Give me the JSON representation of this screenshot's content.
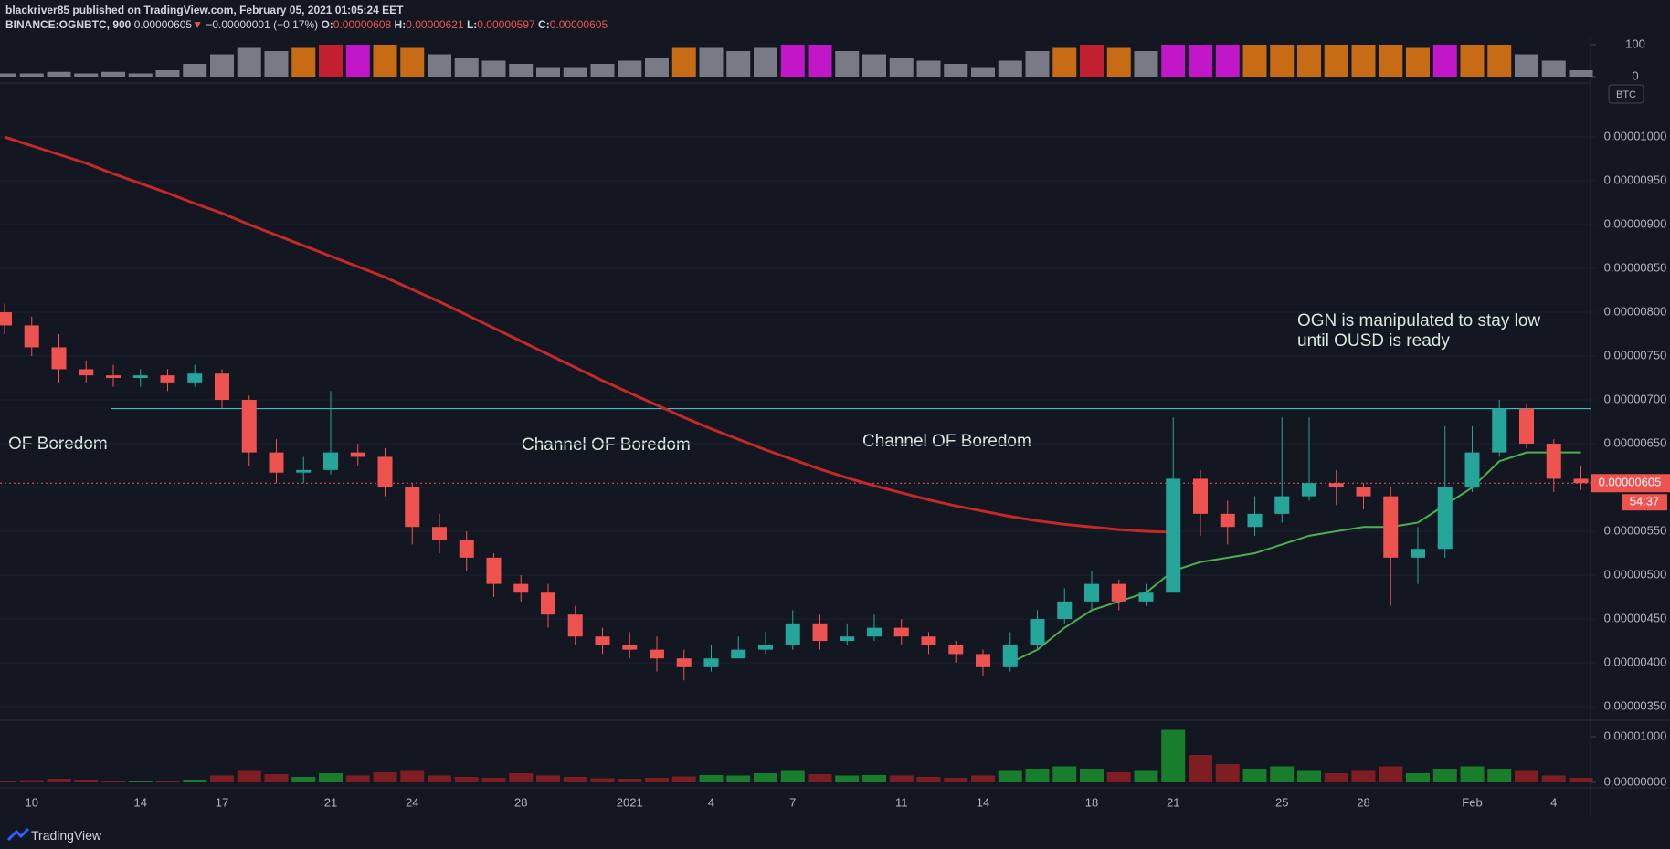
{
  "header": {
    "line1": "blackriver85 published on TradingView.com, February 05, 2021 01:05:24 EET",
    "symbol": "BINANCE:OGNBTC, 900",
    "last": "0.00000605",
    "arrow": "▼",
    "change": "−0.00000001 (−0.17%)",
    "o_label": "O:",
    "o": "0.00000608",
    "h_label": "H:",
    "h": "0.00000621",
    "l_label": "L:",
    "l": "0.00000597",
    "c_label": "C:",
    "c": "0.00000605"
  },
  "chart_data": [
    {
      "type": "bar",
      "ylim": [
        0,
        100
      ],
      "yticks": [
        100,
        0
      ],
      "values": [
        10,
        10,
        15,
        10,
        15,
        10,
        20,
        40,
        70,
        90,
        80,
        90,
        100,
        100,
        100,
        90,
        70,
        60,
        50,
        40,
        30,
        30,
        40,
        50,
        60,
        90,
        90,
        80,
        90,
        100,
        100,
        80,
        70,
        60,
        50,
        40,
        30,
        50,
        80,
        90,
        100,
        90,
        80,
        100,
        100,
        100,
        100,
        100,
        100,
        100,
        100,
        100,
        90,
        100,
        100,
        100,
        70,
        50,
        20
      ],
      "colors": [
        "#787b86",
        "#787b86",
        "#787b86",
        "#787b86",
        "#787b86",
        "#787b86",
        "#787b86",
        "#787b86",
        "#787b86",
        "#787b86",
        "#787b86",
        "#c76b14",
        "#c21f30",
        "#c217c9",
        "#c76b14",
        "#c76b14",
        "#787b86",
        "#787b86",
        "#787b86",
        "#787b86",
        "#787b86",
        "#787b86",
        "#787b86",
        "#787b86",
        "#787b86",
        "#c76b14",
        "#787b86",
        "#787b86",
        "#787b86",
        "#c217c9",
        "#c217c9",
        "#787b86",
        "#787b86",
        "#787b86",
        "#787b86",
        "#787b86",
        "#787b86",
        "#787b86",
        "#787b86",
        "#c76b14",
        "#c21f30",
        "#c76b14",
        "#787b86",
        "#c217c9",
        "#c217c9",
        "#c217c9",
        "#c76b14",
        "#c76b14",
        "#c76b14",
        "#c76b14",
        "#c76b14",
        "#c76b14",
        "#c76b14",
        "#c217c9",
        "#c76b14",
        "#c76b14",
        "#787b86",
        "#787b86",
        "#787b86"
      ]
    },
    {
      "type": "candlestick",
      "currency": "BTC",
      "up_color": "#26a69a",
      "down_color": "#ef5350",
      "categories": [
        null,
        "10",
        null,
        null,
        null,
        "14",
        null,
        null,
        "17",
        null,
        null,
        null,
        "21",
        null,
        null,
        "24",
        null,
        null,
        null,
        "28",
        null,
        null,
        null,
        "2021",
        null,
        null,
        "4",
        null,
        null,
        "7",
        null,
        null,
        null,
        "11",
        null,
        null,
        "14",
        null,
        null,
        null,
        "18",
        null,
        null,
        "21",
        null,
        null,
        null,
        "25",
        null,
        null,
        "28",
        null,
        null,
        null,
        "Feb",
        null,
        null,
        "4",
        null
      ],
      "open": [
        8e-06,
        7.85e-06,
        7.6e-06,
        7.35e-06,
        7.28e-06,
        7.25e-06,
        7.28e-06,
        7.2e-06,
        7.3e-06,
        7e-06,
        6.4e-06,
        6.17e-06,
        6.2e-06,
        6.4e-06,
        6.35e-06,
        6e-06,
        5.55e-06,
        5.4e-06,
        5.2e-06,
        4.9e-06,
        4.8e-06,
        4.55e-06,
        4.3e-06,
        4.2e-06,
        4.15e-06,
        4.05e-06,
        3.95e-06,
        4.05e-06,
        4.15e-06,
        4.2e-06,
        4.45e-06,
        4.25e-06,
        4.3e-06,
        4.4e-06,
        4.3e-06,
        4.2e-06,
        4.1e-06,
        3.95e-06,
        4.2e-06,
        4.5e-06,
        4.7e-06,
        4.9e-06,
        4.7e-06,
        4.8e-06,
        6.1e-06,
        5.7e-06,
        5.55e-06,
        5.7e-06,
        5.9e-06,
        6.05e-06,
        6e-06,
        5.9e-06,
        5.2e-06,
        5.3e-06,
        6e-06,
        6.4e-06,
        6.9e-06,
        6.5e-06,
        6.1e-06
      ],
      "high": [
        8.1e-06,
        7.95e-06,
        7.75e-06,
        7.45e-06,
        7.4e-06,
        7.35e-06,
        7.35e-06,
        7.4e-06,
        7.35e-06,
        7.05e-06,
        6.55e-06,
        6.35e-06,
        7.1e-06,
        6.5e-06,
        6.45e-06,
        6.05e-06,
        5.7e-06,
        5.5e-06,
        5.25e-06,
        5e-06,
        4.9e-06,
        4.65e-06,
        4.4e-06,
        4.35e-06,
        4.3e-06,
        4.15e-06,
        4.2e-06,
        4.3e-06,
        4.35e-06,
        4.6e-06,
        4.55e-06,
        4.45e-06,
        4.55e-06,
        4.5e-06,
        4.35e-06,
        4.25e-06,
        4.15e-06,
        4.35e-06,
        4.6e-06,
        4.85e-06,
        5.05e-06,
        4.95e-06,
        4.9e-06,
        6.8e-06,
        6.2e-06,
        5.85e-06,
        5.9e-06,
        6.8e-06,
        6.8e-06,
        6.2e-06,
        6.05e-06,
        6e-06,
        5.55e-06,
        6.7e-06,
        6.7e-06,
        7e-06,
        6.95e-06,
        6.55e-06,
        6.25e-06
      ],
      "low": [
        7.75e-06,
        7.5e-06,
        7.2e-06,
        7.2e-06,
        7.15e-06,
        7.15e-06,
        7.1e-06,
        7.15e-06,
        6.9e-06,
        6.25e-06,
        6.05e-06,
        6.05e-06,
        6.15e-06,
        6.25e-06,
        5.9e-06,
        5.35e-06,
        5.25e-06,
        5.05e-06,
        4.75e-06,
        4.7e-06,
        4.4e-06,
        4.2e-06,
        4.1e-06,
        4.05e-06,
        3.9e-06,
        3.8e-06,
        3.9e-06,
        4.05e-06,
        4.1e-06,
        4.15e-06,
        4.15e-06,
        4.2e-06,
        4.25e-06,
        4.2e-06,
        4.1e-06,
        4e-06,
        3.85e-06,
        3.9e-06,
        4.15e-06,
        4.45e-06,
        4.6e-06,
        4.6e-06,
        4.65e-06,
        4.8e-06,
        5.45e-06,
        5.35e-06,
        5.45e-06,
        5.6e-06,
        5.85e-06,
        5.8e-06,
        5.75e-06,
        4.65e-06,
        4.9e-06,
        5.2e-06,
        5.95e-06,
        6.35e-06,
        6.45e-06,
        5.95e-06,
        5.97e-06
      ],
      "close": [
        7.85e-06,
        7.6e-06,
        7.35e-06,
        7.28e-06,
        7.25e-06,
        7.28e-06,
        7.2e-06,
        7.3e-06,
        7e-06,
        6.4e-06,
        6.17e-06,
        6.2e-06,
        6.4e-06,
        6.35e-06,
        6e-06,
        5.55e-06,
        5.4e-06,
        5.2e-06,
        4.9e-06,
        4.8e-06,
        4.55e-06,
        4.3e-06,
        4.2e-06,
        4.15e-06,
        4.05e-06,
        3.95e-06,
        4.05e-06,
        4.15e-06,
        4.2e-06,
        4.45e-06,
        4.25e-06,
        4.3e-06,
        4.4e-06,
        4.3e-06,
        4.2e-06,
        4.1e-06,
        3.95e-06,
        4.2e-06,
        4.5e-06,
        4.7e-06,
        4.9e-06,
        4.7e-06,
        4.8e-06,
        6.1e-06,
        5.7e-06,
        5.55e-06,
        5.7e-06,
        5.9e-06,
        6.05e-06,
        6e-06,
        5.9e-06,
        5.2e-06,
        5.3e-06,
        6e-06,
        6.4e-06,
        6.9e-06,
        6.5e-06,
        6.1e-06,
        6.05e-06
      ],
      "lines": [
        {
          "color": "#c62828",
          "width": 3,
          "values": [
            1e-05,
            9.9e-06,
            9.8e-06,
            9.7e-06,
            9.58e-06,
            9.47e-06,
            9.36e-06,
            9.24e-06,
            9.13e-06,
            9e-06,
            8.88e-06,
            8.76e-06,
            8.64e-06,
            8.52e-06,
            8.4e-06,
            8.26e-06,
            8.12e-06,
            7.97e-06,
            7.82e-06,
            7.67e-06,
            7.52e-06,
            7.37e-06,
            7.22e-06,
            7.08e-06,
            6.94e-06,
            6.8e-06,
            6.67e-06,
            6.55e-06,
            6.43e-06,
            6.32e-06,
            6.21e-06,
            6.11e-06,
            6.02e-06,
            5.94e-06,
            5.86e-06,
            5.79e-06,
            5.73e-06,
            5.67e-06,
            5.62e-06,
            5.58e-06,
            5.55e-06,
            5.52e-06,
            5.5e-06,
            5.49e-06,
            null,
            null,
            null,
            null,
            null,
            null,
            null,
            null,
            null,
            null,
            null,
            null,
            null,
            null,
            null
          ]
        },
        {
          "color": "#4caf50",
          "width": 2,
          "values": [
            null,
            null,
            null,
            null,
            null,
            null,
            null,
            null,
            null,
            null,
            null,
            null,
            null,
            null,
            null,
            null,
            null,
            null,
            null,
            null,
            null,
            null,
            null,
            null,
            null,
            null,
            null,
            null,
            null,
            null,
            null,
            null,
            null,
            null,
            null,
            null,
            null,
            4e-06,
            4.15e-06,
            4.4e-06,
            4.6e-06,
            4.7e-06,
            4.8e-06,
            5.05e-06,
            5.15e-06,
            5.2e-06,
            5.25e-06,
            5.35e-06,
            5.45e-06,
            5.5e-06,
            5.55e-06,
            5.55e-06,
            5.6e-06,
            5.8e-06,
            6e-06,
            6.3e-06,
            6.4e-06,
            6.4e-06,
            6.4e-06
          ]
        }
      ],
      "hlines": [
        {
          "value": 6.9e-06,
          "color": "#4dd0e1"
        }
      ],
      "last_price": {
        "value": 6.05e-06,
        "label": "0.00000605"
      },
      "countdown": "54:37",
      "annotations": [
        "OF Boredom",
        "Channel OF Boredom",
        "Channel OF Boredom",
        "OGN is manipulated to stay low",
        "until OUSD is ready"
      ],
      "ylim": [
        3.344e-06,
        1.0563e-05
      ],
      "yticks": [
        {
          "value": 1e-05,
          "label": "0.00001000"
        },
        {
          "value": 9.5e-06,
          "label": "0.00000950"
        },
        {
          "value": 9e-06,
          "label": "0.00000900"
        },
        {
          "value": 8.5e-06,
          "label": "0.00000850"
        },
        {
          "value": 8e-06,
          "label": "0.00000800"
        },
        {
          "value": 7.5e-06,
          "label": "0.00000750"
        },
        {
          "value": 7e-06,
          "label": "0.00000700"
        },
        {
          "value": 6.5e-06,
          "label": "0.00000650"
        },
        {
          "value": 6e-06,
          "label": "0.00000600"
        },
        {
          "value": 5.5e-06,
          "label": "0.00000550"
        },
        {
          "value": 5e-06,
          "label": "0.00000500"
        },
        {
          "value": 4.5e-06,
          "label": "0.00000450"
        },
        {
          "value": 4e-06,
          "label": "0.00000400"
        },
        {
          "value": 3.5e-06,
          "label": "0.00000350"
        }
      ]
    },
    {
      "type": "volume",
      "ylim": [
        0,
        1.36e-05
      ],
      "yticks": [
        {
          "value": 1e-05,
          "label": "0.00001000"
        },
        {
          "value": 0,
          "label": "0.00000000"
        }
      ],
      "values": [
        4e-07,
        5e-07,
        8e-07,
        6e-07,
        4e-07,
        3e-07,
        4e-07,
        6e-07,
        1.5e-06,
        2.5e-06,
        1.8e-06,
        1.2e-06,
        2e-06,
        1.5e-06,
        2.2e-06,
        2.5e-06,
        1.5e-06,
        1.2e-06,
        1e-06,
        2e-06,
        1.5e-06,
        1.2e-06,
        9e-07,
        8e-07,
        1e-06,
        1.3e-06,
        1.6e-06,
        1.5e-06,
        2e-06,
        2.5e-06,
        1.8e-06,
        1.5e-06,
        1.6e-06,
        1.5e-06,
        1.2e-06,
        1e-06,
        1.5e-06,
        2.5e-06,
        3e-06,
        3.5e-06,
        3e-06,
        2.2e-06,
        2.5e-06,
        1.15e-05,
        6e-06,
        4e-06,
        3e-06,
        3.5e-06,
        2.5e-06,
        2e-06,
        2.5e-06,
        3.5e-06,
        2e-06,
        3e-06,
        3.5e-06,
        3e-06,
        2.5e-06,
        1.5e-06,
        1e-06
      ]
    }
  ],
  "footer": {
    "brand": "TradingView"
  }
}
